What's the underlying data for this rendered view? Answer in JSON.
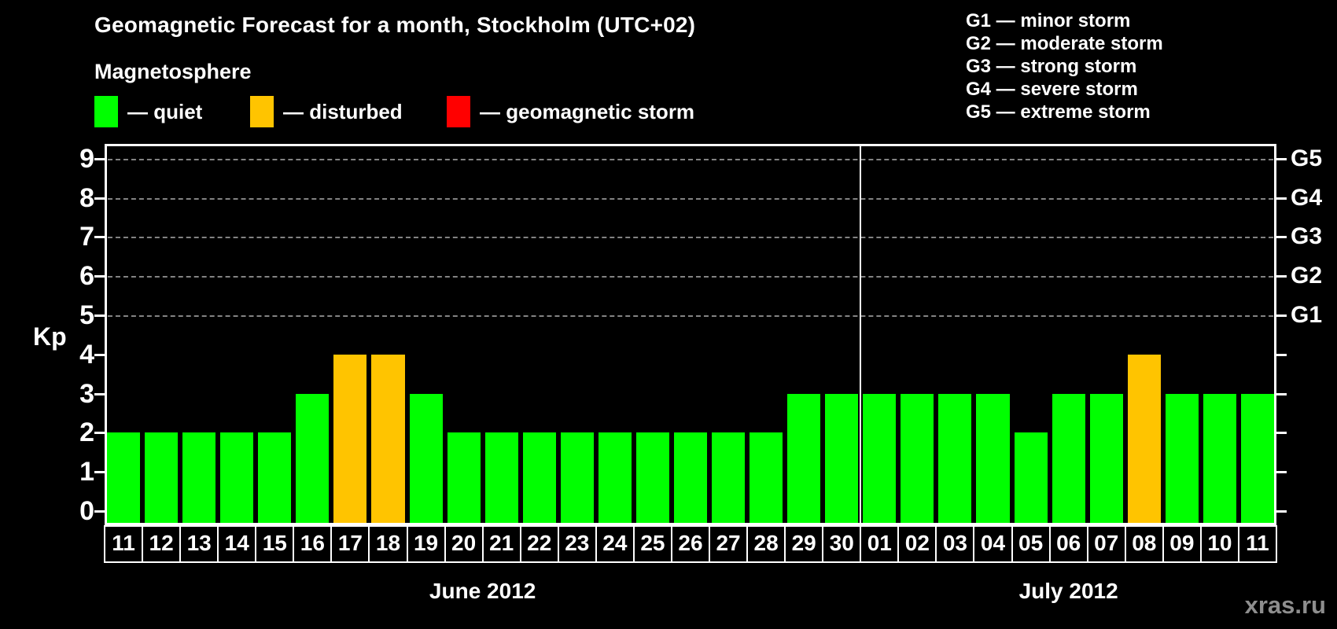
{
  "title": "Geomagnetic Forecast for a month, Stockholm (UTC+02)",
  "subtitle": "Magnetosphere",
  "watermark": "xras.ru",
  "legend": {
    "items": [
      {
        "name": "quiet",
        "label": "— quiet",
        "color": "#00ff00"
      },
      {
        "name": "disturbed",
        "label": "— disturbed",
        "color": "#ffc400"
      },
      {
        "name": "storm",
        "label": "— geomagnetic storm",
        "color": "#ff0000"
      }
    ]
  },
  "g_scale_legend": [
    "G1 — minor storm",
    "G2 — moderate storm",
    "G3 — strong storm",
    "G4 — severe storm",
    "G5 — extreme storm"
  ],
  "chart_data": {
    "type": "bar",
    "title": "Geomagnetic Forecast for a month, Stockholm (UTC+02)",
    "ylabel": "Kp",
    "ylim": [
      0,
      9.4
    ],
    "yticks": [
      0,
      1,
      2,
      3,
      4,
      5,
      6,
      7,
      8,
      9
    ],
    "gridlines": [
      5,
      6,
      7,
      8,
      9
    ],
    "grid_style": "dashed",
    "legend_position": "top-left",
    "colors": {
      "quiet": "#00ff00",
      "disturbed": "#ffc400",
      "storm": "#ff0000"
    },
    "right_axis": [
      {
        "value": 5,
        "label": "G1"
      },
      {
        "value": 6,
        "label": "G2"
      },
      {
        "value": 7,
        "label": "G3"
      },
      {
        "value": 8,
        "label": "G4"
      },
      {
        "value": 9,
        "label": "G5"
      }
    ],
    "months": [
      {
        "label": "June 2012",
        "days": [
          {
            "day": "11",
            "kp": 2,
            "status": "quiet"
          },
          {
            "day": "12",
            "kp": 2,
            "status": "quiet"
          },
          {
            "day": "13",
            "kp": 2,
            "status": "quiet"
          },
          {
            "day": "14",
            "kp": 2,
            "status": "quiet"
          },
          {
            "day": "15",
            "kp": 2,
            "status": "quiet"
          },
          {
            "day": "16",
            "kp": 3,
            "status": "quiet"
          },
          {
            "day": "17",
            "kp": 4,
            "status": "disturbed"
          },
          {
            "day": "18",
            "kp": 4,
            "status": "disturbed"
          },
          {
            "day": "19",
            "kp": 3,
            "status": "quiet"
          },
          {
            "day": "20",
            "kp": 2,
            "status": "quiet"
          },
          {
            "day": "21",
            "kp": 2,
            "status": "quiet"
          },
          {
            "day": "22",
            "kp": 2,
            "status": "quiet"
          },
          {
            "day": "23",
            "kp": 2,
            "status": "quiet"
          },
          {
            "day": "24",
            "kp": 2,
            "status": "quiet"
          },
          {
            "day": "25",
            "kp": 2,
            "status": "quiet"
          },
          {
            "day": "26",
            "kp": 2,
            "status": "quiet"
          },
          {
            "day": "27",
            "kp": 2,
            "status": "quiet"
          },
          {
            "day": "28",
            "kp": 2,
            "status": "quiet"
          },
          {
            "day": "29",
            "kp": 3,
            "status": "quiet"
          },
          {
            "day": "30",
            "kp": 3,
            "status": "quiet"
          }
        ]
      },
      {
        "label": "July 2012",
        "days": [
          {
            "day": "01",
            "kp": 3,
            "status": "quiet"
          },
          {
            "day": "02",
            "kp": 3,
            "status": "quiet"
          },
          {
            "day": "03",
            "kp": 3,
            "status": "quiet"
          },
          {
            "day": "04",
            "kp": 3,
            "status": "quiet"
          },
          {
            "day": "05",
            "kp": 2,
            "status": "quiet"
          },
          {
            "day": "06",
            "kp": 3,
            "status": "quiet"
          },
          {
            "day": "07",
            "kp": 3,
            "status": "quiet"
          },
          {
            "day": "08",
            "kp": 4,
            "status": "disturbed"
          },
          {
            "day": "09",
            "kp": 3,
            "status": "quiet"
          },
          {
            "day": "10",
            "kp": 3,
            "status": "quiet"
          },
          {
            "day": "11",
            "kp": 3,
            "status": "quiet"
          }
        ]
      }
    ]
  }
}
